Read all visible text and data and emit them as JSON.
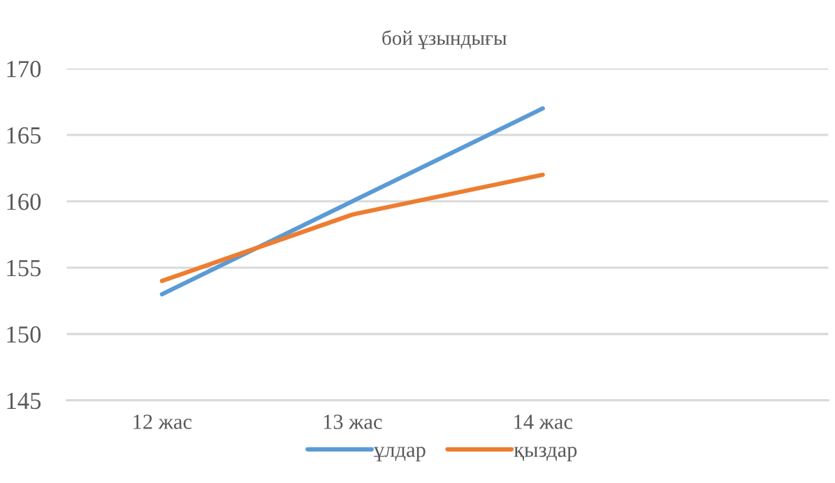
{
  "chart_data": {
    "type": "line",
    "title": "бой ұзындығы",
    "categories": [
      "12 жас",
      "13 жас",
      "14 жас",
      null
    ],
    "series": [
      {
        "name": "ұлдар",
        "color": "#5b9bd5",
        "values": [
          153,
          160,
          167,
          null
        ]
      },
      {
        "name": "қыздар",
        "color": "#ed7d31",
        "values": [
          154,
          159,
          162,
          null
        ]
      }
    ],
    "ylim": [
      145,
      170
    ],
    "yticks": [
      145,
      150,
      155,
      160,
      165,
      170
    ],
    "grid": "y",
    "legend": "bottom",
    "line_style": "solid"
  }
}
